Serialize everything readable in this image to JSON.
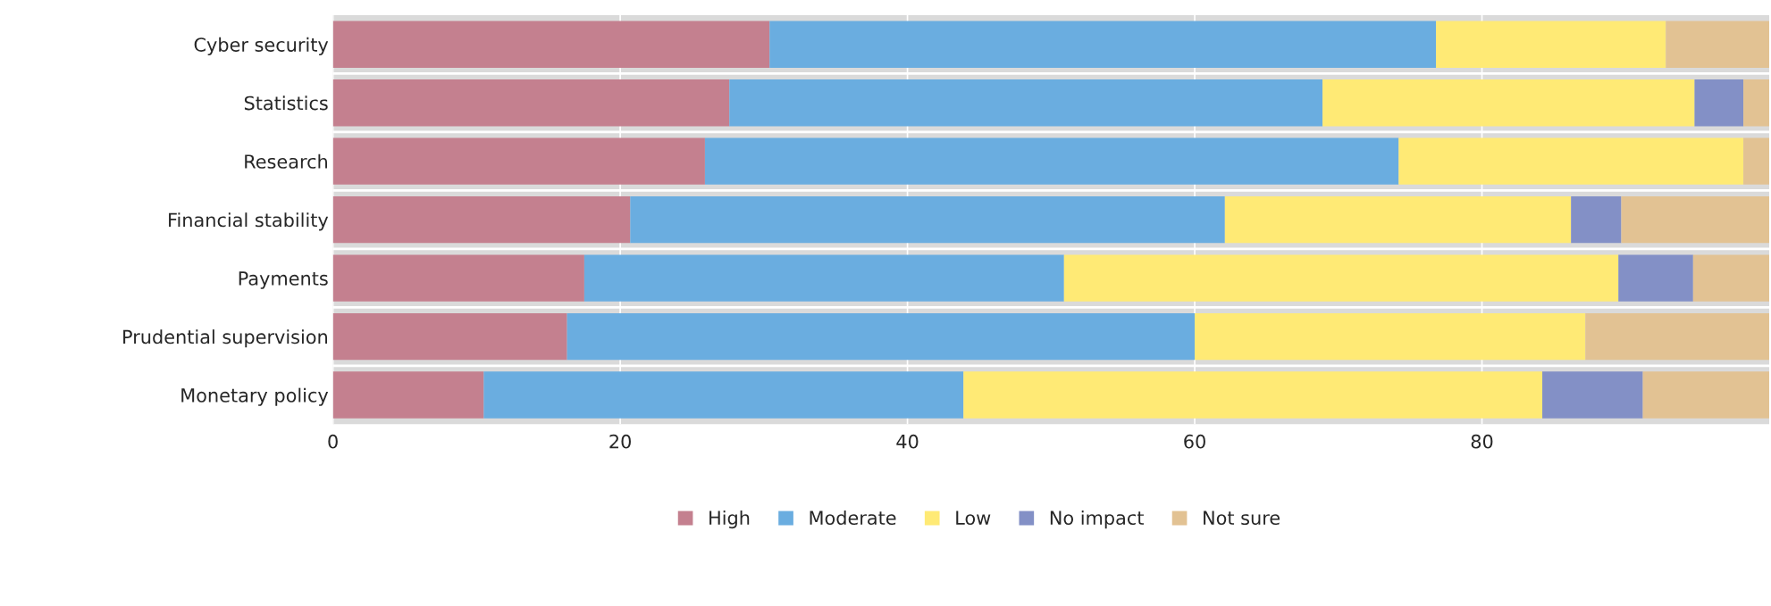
{
  "chart_data": {
    "type": "bar",
    "orientation": "horizontal",
    "stacked": true,
    "categories": [
      "Cyber security",
      "Statistics",
      "Research",
      "Financial stability",
      "Payments",
      "Prudential supervision",
      "Monetary policy"
    ],
    "series": [
      {
        "name": "High",
        "color": "#c4808f",
        "values": [
          30.4,
          27.6,
          25.9,
          20.7,
          17.5,
          16.3,
          10.5
        ]
      },
      {
        "name": "Moderate",
        "color": "#6aade0",
        "values": [
          46.4,
          41.3,
          48.3,
          41.4,
          33.4,
          43.7,
          33.4
        ]
      },
      {
        "name": "Low",
        "color": "#ffea75",
        "values": [
          16.0,
          25.9,
          24.0,
          24.1,
          38.6,
          27.2,
          40.3
        ]
      },
      {
        "name": "No impact",
        "color": "#8390c6",
        "values": [
          0,
          3.4,
          0,
          3.5,
          5.2,
          0,
          7.0
        ]
      },
      {
        "name": "Not sure",
        "color": "#e2c293",
        "values": [
          7.2,
          1.8,
          1.8,
          10.3,
          5.3,
          12.8,
          8.8
        ]
      }
    ],
    "xlim": [
      0,
      100
    ],
    "xticks": [
      0,
      20,
      40,
      60,
      80
    ],
    "grid": "x",
    "legend": "bottom"
  }
}
